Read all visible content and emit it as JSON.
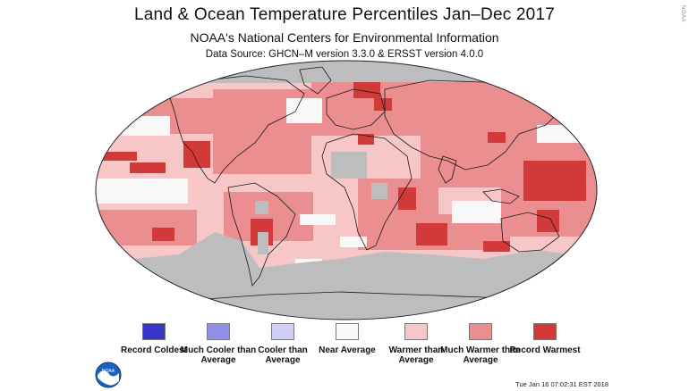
{
  "header": {
    "title": "Land & Ocean Temperature Percentiles Jan–Dec 2017",
    "subtitle": "NOAA's National Centers for Environmental Information",
    "source": "Data Source: GHCN–M version 3.3.0 & ERSST version 4.0.0"
  },
  "watermark": "NOAA",
  "colors": {
    "record_coldest": "#3535c8",
    "much_cooler": "#8f8fe8",
    "cooler": "#cfcff8",
    "near_average": "#f8f8f8",
    "warmer": "#f7c7c8",
    "much_warmer": "#ea8e8f",
    "record_warmest": "#d23a3a",
    "no_data": "#bdbdbd",
    "coastline": "#1a1a1a"
  },
  "legend": [
    {
      "label": "Record Coldest",
      "color": "#3535c8"
    },
    {
      "label": "Much Cooler than Average",
      "color": "#8f8fe8"
    },
    {
      "label": "Cooler than Average",
      "color": "#cfcff8"
    },
    {
      "label": "Near Average",
      "color": "#f8f8f8"
    },
    {
      "label": "Warmer than Average",
      "color": "#f7c7c8"
    },
    {
      "label": "Much Warmer than Average",
      "color": "#ea8e8f"
    },
    {
      "label": "Record Warmest",
      "color": "#d23a3a"
    }
  ],
  "logo": {
    "icon": "noaa-logo-icon",
    "text": "NOAA"
  },
  "timestamp": "Tue Jan 16 07:02:31 EST 2018"
}
